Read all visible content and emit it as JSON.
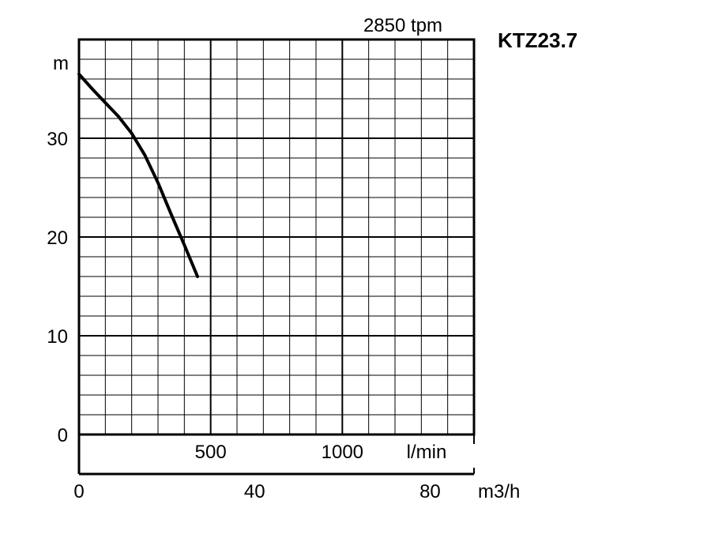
{
  "chart_data": {
    "type": "line",
    "title": "KTZ23.7",
    "subtitle": "2850 tpm",
    "ylabel": "m",
    "ylim": [
      0,
      40
    ],
    "yticks": [
      0,
      10,
      20,
      30
    ],
    "grid": true,
    "xlim_lmin": [
      0,
      1500
    ],
    "xlabel_lmin": "l/min",
    "xticks_lmin": [
      500,
      1000
    ],
    "xlim_m3h": [
      0,
      90
    ],
    "xlabel_m3h": "m3/h",
    "xticks_m3h": [
      0,
      40,
      80
    ],
    "series": [
      {
        "color": "#000000",
        "x_lmin": [
          0,
          50,
          100,
          150,
          200,
          250,
          300,
          350,
          400,
          450
        ],
        "y": [
          36.5,
          35.0,
          33.6,
          32.2,
          30.5,
          28.3,
          25.5,
          22.3,
          19.2,
          16.0
        ]
      }
    ]
  }
}
